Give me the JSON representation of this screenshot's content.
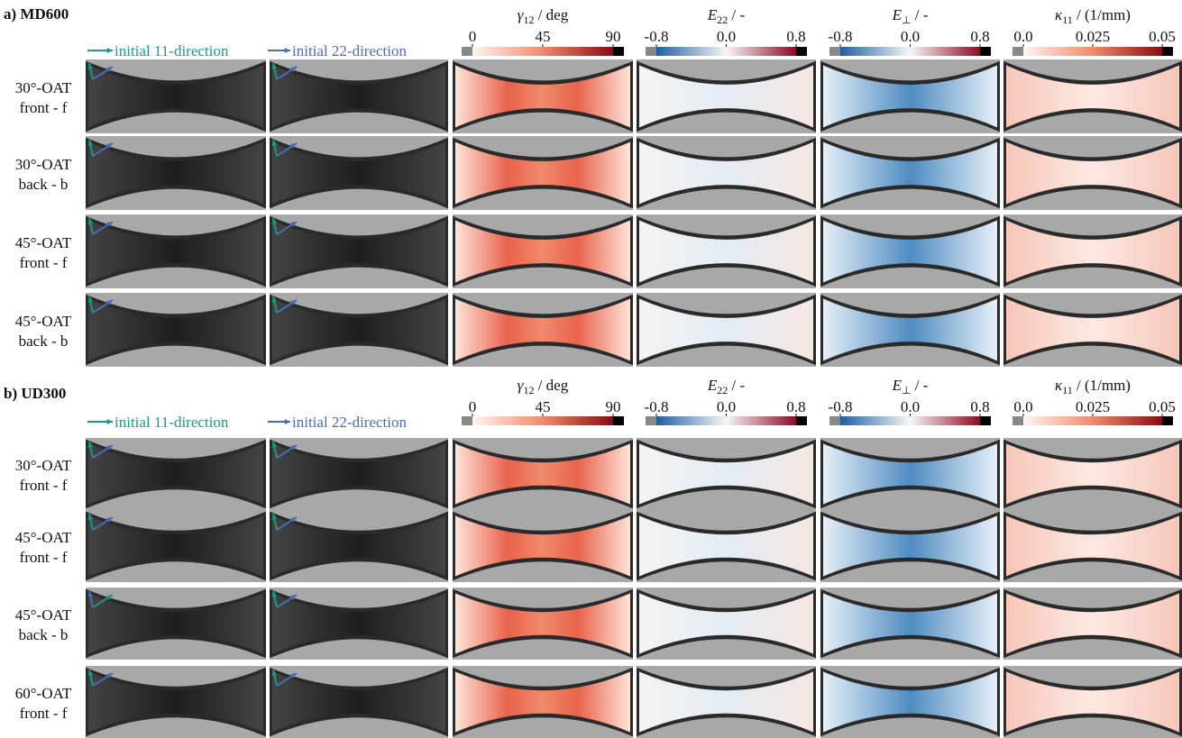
{
  "sections": [
    {
      "title": "a) MD600",
      "directions": [
        "initial 11-direction",
        "initial 22-direction"
      ],
      "colorbars": [
        {
          "symbol": "γ",
          "subscript": "12",
          "unit": " / deg",
          "ticks": [
            "0",
            "45",
            "90"
          ]
        },
        {
          "symbol": "E",
          "subscript": "22",
          "unit": " / -",
          "ticks": [
            "-0.8",
            "0.0",
            "0.8"
          ]
        },
        {
          "symbol": "E",
          "subscript": "⊥",
          "unit": " / -",
          "ticks": [
            "-0.8",
            "0.0",
            "0.8"
          ]
        },
        {
          "symbol": "κ",
          "subscript": "11",
          "unit": " / (1/mm)",
          "ticks": [
            "0.0",
            "0.025",
            "0.05"
          ]
        }
      ],
      "rows": [
        [
          "30°-OAT",
          "front - f"
        ],
        [
          "30°-OAT",
          "back - b"
        ],
        [
          "45°-OAT",
          "front - f"
        ],
        [
          "45°-OAT",
          "back - b"
        ]
      ]
    },
    {
      "title": "b) UD300",
      "directions": [
        "initial 11-direction",
        "initial 22-direction"
      ],
      "colorbars": [
        {
          "symbol": "γ",
          "subscript": "12",
          "unit": " / deg",
          "ticks": [
            "0",
            "45",
            "90"
          ]
        },
        {
          "symbol": "E",
          "subscript": "22",
          "unit": " / -",
          "ticks": [
            "-0.8",
            "0.0",
            "0.8"
          ]
        },
        {
          "symbol": "E",
          "subscript": "⊥",
          "unit": " / -",
          "ticks": [
            "-0.8",
            "0.0",
            "0.8"
          ]
        },
        {
          "symbol": "κ",
          "subscript": "11",
          "unit": " / (1/mm)",
          "ticks": [
            "0.0",
            "0.025",
            "0.05"
          ]
        }
      ],
      "rows": [
        [
          "30°-OAT",
          "front - f"
        ],
        [
          "45°-OAT",
          "front - f"
        ],
        [
          "45°-OAT",
          "back - b"
        ],
        [
          "60°-OAT",
          "front - f"
        ]
      ]
    }
  ]
}
